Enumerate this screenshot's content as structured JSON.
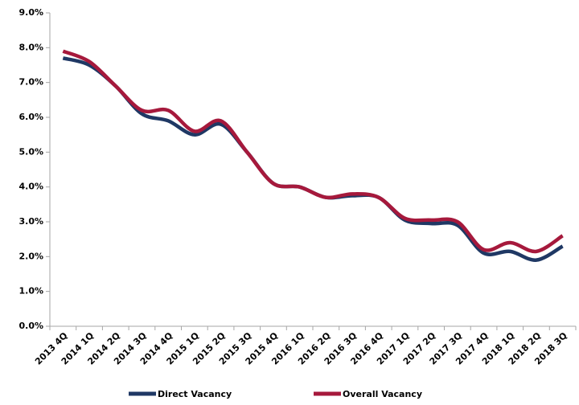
{
  "chart_data": {
    "type": "line",
    "categories": [
      "2013 4Q",
      "2014 1Q",
      "2014 2Q",
      "2014 3Q",
      "2014 4Q",
      "2015 1Q",
      "2015 2Q",
      "2015 3Q",
      "2015 4Q",
      "2016 1Q",
      "2016 2Q",
      "2016 3Q",
      "2016 4Q",
      "2017 1Q",
      "2017 2Q",
      "2017 3Q",
      "2017 4Q",
      "2018 1Q",
      "2018 2Q",
      "2018 3Q"
    ],
    "series": [
      {
        "name": "Direct Vacancy",
        "color": "#1f3864",
        "values": [
          7.7,
          7.5,
          6.9,
          6.1,
          5.9,
          5.5,
          5.8,
          5.0,
          4.1,
          4.0,
          3.7,
          3.75,
          3.7,
          3.05,
          2.95,
          2.9,
          2.1,
          2.15,
          1.9,
          2.3
        ]
      },
      {
        "name": "Overall Vacancy",
        "color": "#a6193c",
        "values": [
          7.9,
          7.6,
          6.9,
          6.2,
          6.2,
          5.6,
          5.9,
          5.0,
          4.1,
          4.0,
          3.7,
          3.8,
          3.7,
          3.1,
          3.05,
          3.0,
          2.2,
          2.4,
          2.15,
          2.6
        ]
      }
    ],
    "ylim": [
      0,
      9
    ],
    "yticks": [
      {
        "value": 0,
        "label": "0.0%"
      },
      {
        "value": 1,
        "label": "1.0%"
      },
      {
        "value": 2,
        "label": "2.0%"
      },
      {
        "value": 3,
        "label": "3.0%"
      },
      {
        "value": 4,
        "label": "4.0%"
      },
      {
        "value": 5,
        "label": "5.0%"
      },
      {
        "value": 6,
        "label": "6.0%"
      },
      {
        "value": 7,
        "label": "7.0%"
      },
      {
        "value": 8,
        "label": "8.0%"
      },
      {
        "value": 9,
        "label": "9.0%"
      }
    ],
    "legend": "bottom"
  }
}
